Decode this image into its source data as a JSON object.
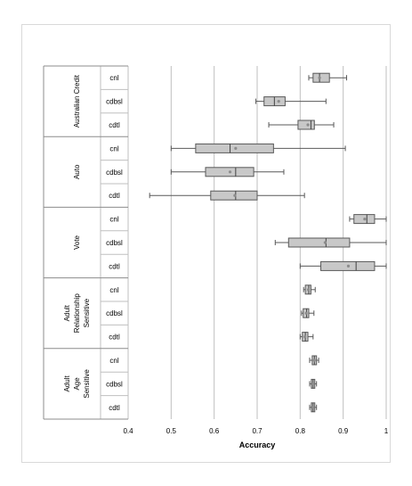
{
  "chart_data": {
    "type": "boxplot",
    "title": "",
    "xlabel": "Accuracy",
    "xlim": [
      0.4,
      1.0
    ],
    "xticks": [
      "0.4",
      "0.5",
      "0.6",
      "0.7",
      "0.8",
      "0.9",
      "1"
    ],
    "grid": true,
    "orientation": "horizontal",
    "colors": {
      "box_fill": "#c8c8c8",
      "box_stroke": "#595959",
      "mean_marker": "#8c8c8c",
      "grid": "#bfbfbf"
    },
    "groups": [
      {
        "name": "Australian Credit",
        "rows": [
          {
            "label": "cnl",
            "min": 0.82,
            "q1": 0.83,
            "median": 0.845,
            "q3": 0.868,
            "max": 0.908,
            "mean": 0.845
          },
          {
            "label": "cdbsl",
            "min": 0.697,
            "q1": 0.716,
            "median": 0.74,
            "q3": 0.765,
            "max": 0.86,
            "mean": 0.75
          },
          {
            "label": "cdtl",
            "min": 0.727,
            "q1": 0.795,
            "median": 0.825,
            "q3": 0.833,
            "max": 0.878,
            "mean": 0.818
          }
        ]
      },
      {
        "name": "Auto",
        "rows": [
          {
            "label": "cnl",
            "min": 0.5,
            "q1": 0.557,
            "median": 0.637,
            "q3": 0.738,
            "max": 0.905,
            "mean": 0.65
          },
          {
            "label": "cdbsl",
            "min": 0.5,
            "q1": 0.58,
            "median": 0.65,
            "q3": 0.692,
            "max": 0.762,
            "mean": 0.637
          },
          {
            "label": "cdtl",
            "min": 0.45,
            "q1": 0.592,
            "median": 0.65,
            "q3": 0.7,
            "max": 0.81,
            "mean": 0.648
          }
        ]
      },
      {
        "name": "Vote",
        "rows": [
          {
            "label": "cnl",
            "min": 0.915,
            "q1": 0.925,
            "median": 0.955,
            "q3": 0.973,
            "max": 1.0,
            "mean": 0.95
          },
          {
            "label": "cdbsl",
            "min": 0.742,
            "q1": 0.773,
            "median": 0.86,
            "q3": 0.915,
            "max": 1.0,
            "mean": 0.858
          },
          {
            "label": "cdtl",
            "min": 0.8,
            "q1": 0.848,
            "median": 0.93,
            "q3": 0.973,
            "max": 1.0,
            "mean": 0.912
          }
        ]
      },
      {
        "name": "Adult Relationship Sensitive",
        "rows": [
          {
            "label": "cnl",
            "min": 0.808,
            "q1": 0.812,
            "median": 0.82,
            "q3": 0.825,
            "max": 0.835,
            "mean": 0.819
          },
          {
            "label": "cdbsl",
            "min": 0.803,
            "q1": 0.807,
            "median": 0.815,
            "q3": 0.82,
            "max": 0.832,
            "mean": 0.814
          },
          {
            "label": "cdtl",
            "min": 0.8,
            "q1": 0.805,
            "median": 0.812,
            "q3": 0.818,
            "max": 0.83,
            "mean": 0.811
          }
        ]
      },
      {
        "name": "Adult Age Sensitive",
        "rows": [
          {
            "label": "cnl",
            "min": 0.822,
            "q1": 0.828,
            "median": 0.833,
            "q3": 0.838,
            "max": 0.843,
            "mean": 0.833
          },
          {
            "label": "cdbsl",
            "min": 0.822,
            "q1": 0.826,
            "median": 0.83,
            "q3": 0.834,
            "max": 0.838,
            "mean": 0.83
          },
          {
            "label": "cdtl",
            "min": 0.822,
            "q1": 0.826,
            "median": 0.83,
            "q3": 0.834,
            "max": 0.838,
            "mean": 0.83
          }
        ]
      }
    ]
  }
}
